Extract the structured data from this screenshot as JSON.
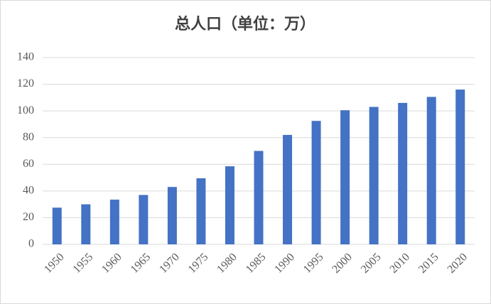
{
  "chart_data": {
    "type": "bar",
    "title": "总人口（单位：万）",
    "categories": [
      "1950",
      "1955",
      "1960",
      "1965",
      "1970",
      "1975",
      "1980",
      "1985",
      "1990",
      "1995",
      "2000",
      "2005",
      "2010",
      "2015",
      "2020"
    ],
    "values": [
      27.5,
      30,
      33.5,
      37,
      43,
      49.5,
      58.5,
      70,
      82,
      92.5,
      100.5,
      103,
      106,
      110.5,
      116
    ],
    "color": "#4472c4",
    "ylim": [
      0,
      140
    ],
    "yticks": [
      0,
      20,
      40,
      60,
      80,
      100,
      120,
      140
    ],
    "grid": true
  }
}
